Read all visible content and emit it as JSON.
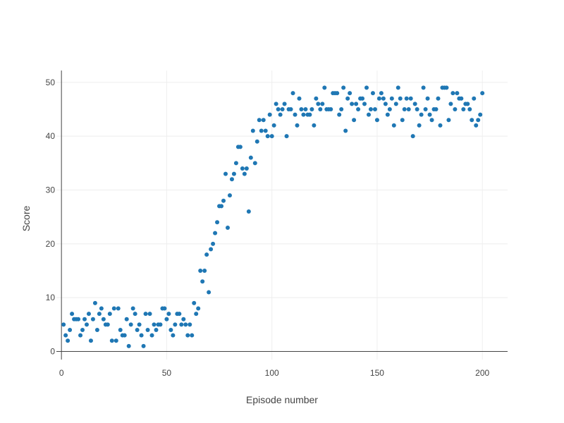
{
  "chart_data": {
    "type": "scatter",
    "title": "",
    "xlabel": "Episode number",
    "ylabel": "Score",
    "xlim": [
      -2.4,
      212
    ],
    "ylim": [
      -1.5,
      52.2
    ],
    "x_ticks": [
      0,
      50,
      100,
      150,
      200
    ],
    "y_ticks": [
      0,
      10,
      20,
      30,
      40,
      50
    ],
    "grid": true,
    "legend": "none",
    "marker_color": "#1f77b4",
    "series": [
      {
        "x": [
          1,
          2,
          3,
          4,
          5,
          6,
          7,
          8,
          9,
          10,
          11,
          12,
          13,
          14,
          15,
          16,
          17,
          18,
          19,
          20,
          21,
          22,
          23,
          24,
          25,
          26,
          27,
          28,
          29,
          30,
          31,
          32,
          33,
          34,
          35,
          36,
          37,
          38,
          39,
          40,
          41,
          42,
          43,
          44,
          45,
          46,
          47,
          48,
          49,
          50,
          51,
          52,
          53,
          54,
          55,
          56,
          57,
          58,
          59,
          60,
          61,
          62,
          63,
          64,
          65,
          66,
          67,
          68,
          69,
          70,
          71,
          72,
          73,
          74,
          75,
          76,
          77,
          78,
          79,
          80,
          81,
          82,
          83,
          84,
          85,
          86,
          87,
          88,
          89,
          90,
          91,
          92,
          93,
          94,
          95,
          96,
          97,
          98,
          99,
          100,
          101,
          102,
          103,
          104,
          105,
          106,
          107,
          108,
          109,
          110,
          111,
          112,
          113,
          114,
          115,
          116,
          117,
          118,
          119,
          120,
          121,
          122,
          123,
          124,
          125,
          126,
          127,
          128,
          129,
          130,
          131,
          132,
          133,
          134,
          135,
          136,
          137,
          138,
          139,
          140,
          141,
          142,
          143,
          144,
          145,
          146,
          147,
          148,
          149,
          150,
          151,
          152,
          153,
          154,
          155,
          156,
          157,
          158,
          159,
          160,
          161,
          162,
          163,
          164,
          165,
          166,
          167,
          168,
          169,
          170,
          171,
          172,
          173,
          174,
          175,
          176,
          177,
          178,
          179,
          180,
          181,
          182,
          183,
          184,
          185,
          186,
          187,
          188,
          189,
          190,
          191,
          192,
          193,
          194,
          195,
          196,
          197,
          198,
          199,
          200
        ],
        "y": [
          5,
          3,
          2,
          4,
          7,
          6,
          6,
          6,
          3,
          4,
          6,
          5,
          7,
          2,
          6,
          9,
          4,
          7,
          8,
          6,
          5,
          5,
          7,
          2,
          8,
          2,
          8,
          4,
          3,
          3,
          6,
          1,
          5,
          8,
          7,
          4,
          5,
          3,
          1,
          7,
          4,
          7,
          3,
          5,
          4,
          5,
          5,
          8,
          8,
          6,
          7,
          4,
          3,
          5,
          7,
          7,
          5,
          6,
          5,
          3,
          5,
          3,
          9,
          7,
          8,
          15,
          13,
          15,
          18,
          11,
          19,
          20,
          22,
          24,
          27,
          27,
          28,
          33,
          23,
          29,
          32,
          33,
          35,
          38,
          38,
          34,
          33,
          34,
          26,
          36,
          41,
          35,
          39,
          43,
          41,
          43,
          41,
          40,
          44,
          40,
          42,
          46,
          45,
          44,
          45,
          46,
          40,
          45,
          45,
          48,
          44,
          42,
          47,
          45,
          44,
          45,
          44,
          44,
          45,
          42,
          47,
          46,
          45,
          46,
          49,
          45,
          45,
          45,
          48,
          48,
          48,
          44,
          45,
          49,
          41,
          47,
          48,
          46,
          43,
          46,
          45,
          47,
          47,
          46,
          49,
          44,
          45,
          48,
          45,
          43,
          47,
          48,
          47,
          46,
          44,
          45,
          47,
          42,
          46,
          49,
          47,
          43,
          45,
          47,
          45,
          47,
          40,
          46,
          45,
          42,
          44,
          49,
          45,
          47,
          44,
          43,
          45,
          45,
          47,
          42,
          49,
          49,
          49,
          43,
          46,
          48,
          45,
          48,
          47,
          47,
          45,
          46,
          46,
          45,
          43,
          47,
          42,
          43,
          44,
          48
        ]
      }
    ]
  }
}
